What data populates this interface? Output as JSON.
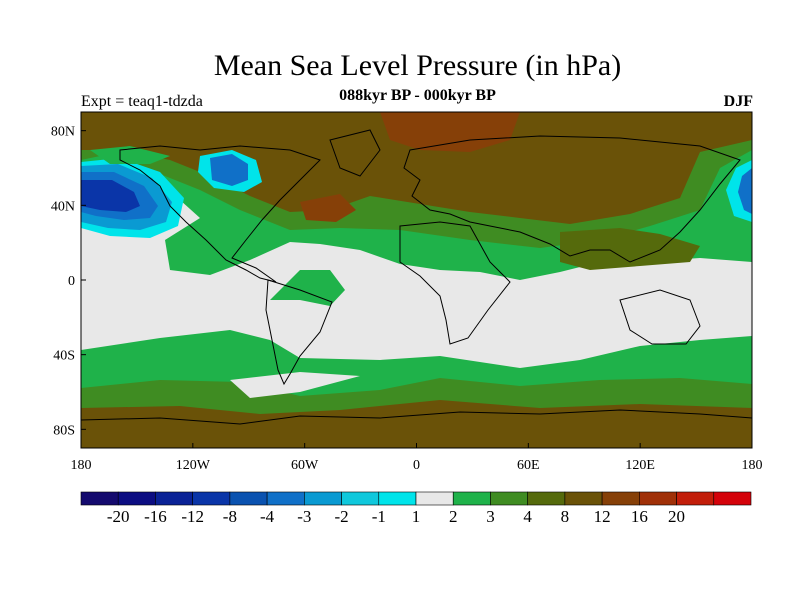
{
  "figure": {
    "title": "Mean Sea Level Pressure (in hPa)",
    "subtitle": "088kyr BP - 000kyr BP",
    "experiment": "Expt = teaq1-tdzda",
    "season": "DJF"
  },
  "axes": {
    "x_ticks": [
      {
        "value": -180,
        "label": "180"
      },
      {
        "value": -120,
        "label": "120W"
      },
      {
        "value": -60,
        "label": "60W"
      },
      {
        "value": 0,
        "label": "0"
      },
      {
        "value": 60,
        "label": "60E"
      },
      {
        "value": 120,
        "label": "120E"
      },
      {
        "value": 180,
        "label": "180"
      }
    ],
    "y_ticks": [
      {
        "value": 80,
        "label": "80N"
      },
      {
        "value": 40,
        "label": "40N"
      },
      {
        "value": 0,
        "label": "0"
      },
      {
        "value": -40,
        "label": "40S"
      },
      {
        "value": -80,
        "label": "80S"
      }
    ]
  },
  "colorbar": {
    "colors": [
      "#140a6e",
      "#0c0d82",
      "#0a2296",
      "#0a35a8",
      "#0a52b0",
      "#1070c8",
      "#0a9ad2",
      "#10c8dc",
      "#00e4ea",
      "#e8e8e8",
      "#1fb24a",
      "#3f8c22",
      "#556a0c",
      "#6a5208",
      "#864008",
      "#a03008",
      "#c21e0a",
      "#d4020a"
    ],
    "labels": [
      "-20",
      "-16",
      "-12",
      "-8",
      "-4",
      "-3",
      "-2",
      "-1",
      "1",
      "2",
      "3",
      "4",
      "8",
      "12",
      "16",
      "20"
    ]
  },
  "colors": {
    "neutral": "#e8e8e8",
    "green": "#1fb24a",
    "dark_green": "#3f8c22",
    "olive": "#556a0c",
    "brown": "#6a5208",
    "red_brown": "#864008",
    "cyan": "#00e4ea",
    "light_blue": "#0a9ad2",
    "blue": "#1070c8",
    "dark_blue": "#0a35a8"
  }
}
